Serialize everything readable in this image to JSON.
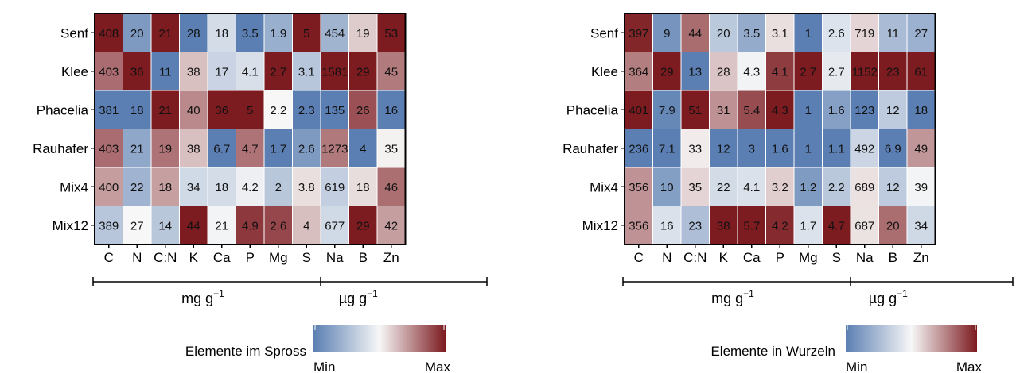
{
  "chart_data": [
    {
      "type": "heatmap",
      "legend_title": "Elemente im Spross",
      "legend_min": "Min",
      "legend_max": "Max",
      "rows": [
        "Senf",
        "Klee",
        "Phacelia",
        "Rauhafer",
        "Mix4",
        "Mix12"
      ],
      "columns": [
        "C",
        "N",
        "C:N",
        "K",
        "Ca",
        "P",
        "Mg",
        "S",
        "Na",
        "B",
        "Zn"
      ],
      "unit_groups": [
        {
          "label_base": "mg g",
          "label_exp": "−1",
          "columns": [
            "C",
            "N",
            "C:N",
            "K",
            "Ca",
            "P",
            "Mg",
            "S"
          ]
        },
        {
          "label_base": "µg g",
          "label_exp": "−1",
          "columns": [
            "Na",
            "B",
            "Zn"
          ]
        }
      ],
      "values": [
        [
          "408",
          "20",
          "21",
          "28",
          "18",
          "3.5",
          "1.9",
          "5",
          "454",
          "19",
          "53"
        ],
        [
          "403",
          "36",
          "11",
          "38",
          "17",
          "4.1",
          "2.7",
          "3.1",
          "1581",
          "29",
          "45"
        ],
        [
          "381",
          "18",
          "21",
          "40",
          "36",
          "5",
          "2.2",
          "2.3",
          "135",
          "26",
          "16"
        ],
        [
          "403",
          "21",
          "19",
          "38",
          "6.7",
          "4.7",
          "1.7",
          "2.6",
          "1273",
          "4",
          "35"
        ],
        [
          "400",
          "22",
          "18",
          "34",
          "18",
          "4.2",
          "2",
          "3.8",
          "619",
          "18",
          "46"
        ],
        [
          "389",
          "27",
          "14",
          "44",
          "21",
          "4.9",
          "2.6",
          "4",
          "677",
          "29",
          "42"
        ]
      ],
      "colors": {
        "min": "#5b7fb2",
        "mid": "#f7f7f7",
        "max": "#7c1b20"
      }
    },
    {
      "type": "heatmap",
      "legend_title": "Elemente in Wurzeln",
      "legend_min": "Min",
      "legend_max": "Max",
      "rows": [
        "Senf",
        "Klee",
        "Phacelia",
        "Rauhafer",
        "Mix4",
        "Mix12"
      ],
      "columns": [
        "C",
        "N",
        "C:N",
        "K",
        "Ca",
        "P",
        "Mg",
        "S",
        "Na",
        "B",
        "Zn"
      ],
      "unit_groups": [
        {
          "label_base": "mg g",
          "label_exp": "−1",
          "columns": [
            "C",
            "N",
            "C:N",
            "K",
            "Ca",
            "P",
            "Mg",
            "S"
          ]
        },
        {
          "label_base": "µg g",
          "label_exp": "−1",
          "columns": [
            "Na",
            "B",
            "Zn"
          ]
        }
      ],
      "values": [
        [
          "397",
          "9",
          "44",
          "20",
          "3.5",
          "3.1",
          "1",
          "2.6",
          "719",
          "11",
          "27"
        ],
        [
          "364",
          "29",
          "13",
          "28",
          "4.3",
          "4.1",
          "2.7",
          "2.7",
          "1152",
          "23",
          "61"
        ],
        [
          "401",
          "7.9",
          "51",
          "31",
          "5.4",
          "4.3",
          "1",
          "1.6",
          "123",
          "12",
          "18"
        ],
        [
          "236",
          "7.1",
          "33",
          "12",
          "3",
          "1.6",
          "1",
          "1.1",
          "492",
          "6.9",
          "49"
        ],
        [
          "356",
          "10",
          "35",
          "22",
          "4.1",
          "3.2",
          "1.2",
          "2.2",
          "689",
          "12",
          "39"
        ],
        [
          "356",
          "16",
          "23",
          "38",
          "5.7",
          "4.2",
          "1.7",
          "4.7",
          "687",
          "20",
          "34"
        ]
      ],
      "colors": {
        "min": "#5b7fb2",
        "mid": "#f7f7f7",
        "max": "#7c1b20"
      }
    }
  ]
}
